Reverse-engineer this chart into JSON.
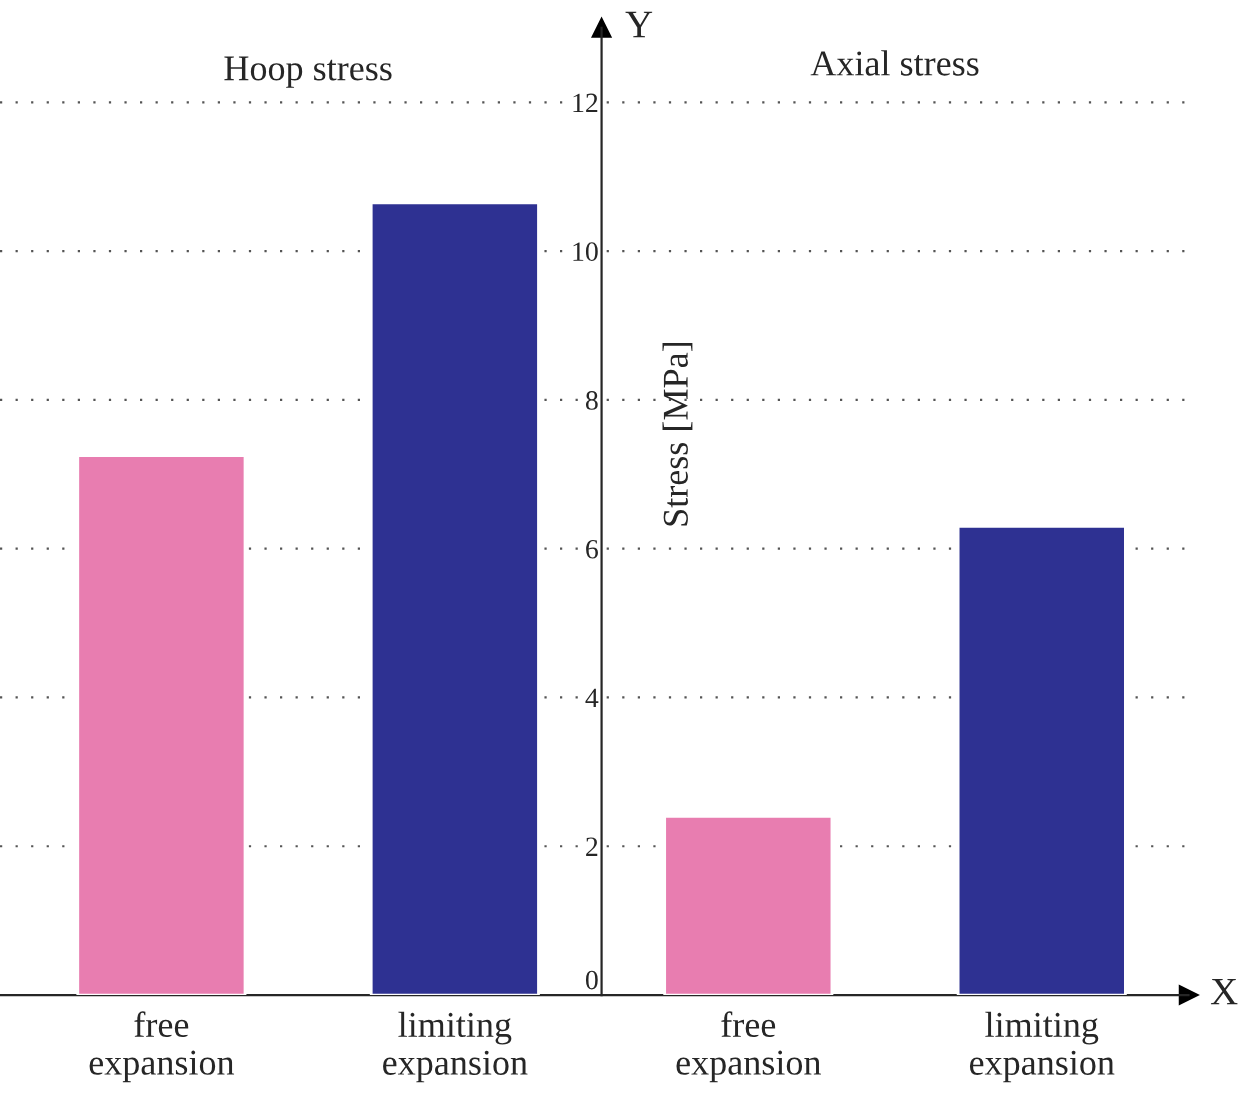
{
  "chart_data": {
    "type": "bar",
    "categories": [
      "free\nexpansion",
      "limiting\nexpansion",
      "free\nexpansion",
      "limiting\nexpansion"
    ],
    "values": [
      7.25,
      10.65,
      2.4,
      6.3
    ],
    "colors": [
      "#e87db0",
      "#2e3192",
      "#e87db0",
      "#2e3192"
    ],
    "ylabel": "Stress [MPa]",
    "xlabel": "X",
    "annotations": [
      "Y",
      "Hoop stress",
      "Axial stress"
    ],
    "ylim": [
      0,
      13
    ],
    "yticks": [
      0,
      2,
      4,
      6,
      8,
      10,
      12
    ],
    "grid": "y",
    "legend": false
  }
}
